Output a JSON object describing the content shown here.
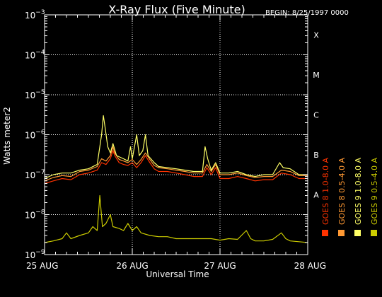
{
  "chart_data": {
    "type": "line",
    "title": "X-Ray Flux (Five Minute)",
    "begin_label": "BEGIN: 8/25/1997 0000",
    "xlabel": "Universal Time",
    "ylabel": "Watts meter2",
    "log_scale_y": true,
    "ylim": [
      1e-09,
      0.001
    ],
    "xlim_days": [
      0,
      3
    ],
    "grid": true,
    "legend_position": "right-vertical",
    "x_ticks": [
      {
        "day": 0,
        "label": "25 AUG"
      },
      {
        "day": 1,
        "label": "26 AUG"
      },
      {
        "day": 2,
        "label": "27 AUG"
      },
      {
        "day": 3,
        "label": "28 AUG"
      }
    ],
    "y_ticks": [
      {
        "value": 1e-09,
        "mantissa": "10",
        "exponent": "−9"
      },
      {
        "value": 1e-08,
        "mantissa": "10",
        "exponent": "−8"
      },
      {
        "value": 1e-07,
        "mantissa": "10",
        "exponent": "−7"
      },
      {
        "value": 1e-06,
        "mantissa": "10",
        "exponent": "−6"
      },
      {
        "value": 1e-05,
        "mantissa": "10",
        "exponent": "−5"
      },
      {
        "value": 0.0001,
        "mantissa": "10",
        "exponent": "−4"
      },
      {
        "value": 0.001,
        "mantissa": "10",
        "exponent": "−3"
      }
    ],
    "flare_classes": [
      {
        "label": "X",
        "value": 0.0001
      },
      {
        "label": "M",
        "value": 1e-05
      },
      {
        "label": "C",
        "value": 1e-06
      },
      {
        "label": "B",
        "value": 1e-07
      },
      {
        "label": "A",
        "value": 1e-08
      }
    ],
    "legend": [
      {
        "name": "GOES 8 1.0-8.0 A",
        "color": "#ff3300"
      },
      {
        "name": "GOES 8 0.5-4.0 A",
        "color": "#ff9933"
      },
      {
        "name": "GOES 9 1.0-8.0 A",
        "color": "#ffff66"
      },
      {
        "name": "GOES 9 0.5-4.0 A",
        "color": "#cccc00"
      }
    ],
    "series": [
      {
        "color": "#ff3300",
        "points": [
          [
            0,
            6e-08
          ],
          [
            0.1,
            7e-08
          ],
          [
            0.2,
            8e-08
          ],
          [
            0.3,
            7.5e-08
          ],
          [
            0.4,
            1e-07
          ],
          [
            0.5,
            1.1e-07
          ],
          [
            0.6,
            1.3e-07
          ],
          [
            0.65,
            2e-07
          ],
          [
            0.7,
            1.8e-07
          ],
          [
            0.75,
            2.5e-07
          ],
          [
            0.78,
            4e-07
          ],
          [
            0.8,
            3e-07
          ],
          [
            0.85,
            2e-07
          ],
          [
            0.9,
            1.8e-07
          ],
          [
            0.95,
            1.7e-07
          ],
          [
            1.0,
            2e-07
          ],
          [
            1.05,
            1.5e-07
          ],
          [
            1.1,
            2e-07
          ],
          [
            1.15,
            3e-07
          ],
          [
            1.2,
            2e-07
          ],
          [
            1.25,
            1.4e-07
          ],
          [
            1.3,
            1.2e-07
          ],
          [
            1.4,
            1.2e-07
          ],
          [
            1.5,
            1.1e-07
          ],
          [
            1.6,
            1e-07
          ],
          [
            1.7,
            9e-08
          ],
          [
            1.8,
            9e-08
          ],
          [
            1.85,
            1.5e-07
          ],
          [
            1.9,
            1e-07
          ],
          [
            1.95,
            1.5e-07
          ],
          [
            2.0,
            8e-08
          ],
          [
            2.1,
            8e-08
          ],
          [
            2.2,
            9e-08
          ],
          [
            2.3,
            8e-08
          ],
          [
            2.4,
            7e-08
          ],
          [
            2.5,
            7.5e-08
          ],
          [
            2.6,
            7.5e-08
          ],
          [
            2.7,
            1.1e-07
          ],
          [
            2.8,
            1e-07
          ],
          [
            2.9,
            8e-08
          ],
          [
            3.0,
            8e-08
          ]
        ]
      },
      {
        "color": "#ff9933",
        "points": [
          [
            0,
            7e-08
          ],
          [
            0.1,
            8.5e-08
          ],
          [
            0.2,
            9.5e-08
          ],
          [
            0.3,
            9e-08
          ],
          [
            0.4,
            1.2e-07
          ],
          [
            0.5,
            1.3e-07
          ],
          [
            0.6,
            1.6e-07
          ],
          [
            0.65,
            2.5e-07
          ],
          [
            0.7,
            2.2e-07
          ],
          [
            0.75,
            3e-07
          ],
          [
            0.78,
            5e-07
          ],
          [
            0.8,
            3.5e-07
          ],
          [
            0.85,
            2.4e-07
          ],
          [
            0.9,
            2.2e-07
          ],
          [
            0.95,
            2e-07
          ],
          [
            1.0,
            2.4e-07
          ],
          [
            1.05,
            1.8e-07
          ],
          [
            1.1,
            2.4e-07
          ],
          [
            1.15,
            3.5e-07
          ],
          [
            1.2,
            2.4e-07
          ],
          [
            1.25,
            1.7e-07
          ],
          [
            1.3,
            1.5e-07
          ],
          [
            1.4,
            1.4e-07
          ],
          [
            1.5,
            1.3e-07
          ],
          [
            1.6,
            1.2e-07
          ],
          [
            1.7,
            1.1e-07
          ],
          [
            1.8,
            1.1e-07
          ],
          [
            1.85,
            1.8e-07
          ],
          [
            1.9,
            1.2e-07
          ],
          [
            1.95,
            1.8e-07
          ],
          [
            2.0,
            1e-07
          ],
          [
            2.1,
            1e-07
          ],
          [
            2.2,
            1.1e-07
          ],
          [
            2.3,
            9.5e-08
          ],
          [
            2.4,
            8.5e-08
          ],
          [
            2.5,
            9e-08
          ],
          [
            2.6,
            9e-08
          ],
          [
            2.7,
            1.3e-07
          ],
          [
            2.8,
            1.2e-07
          ],
          [
            2.9,
            9.5e-08
          ],
          [
            3.0,
            9.5e-08
          ]
        ]
      },
      {
        "color": "#ffff66",
        "points": [
          [
            0,
            8e-08
          ],
          [
            0.1,
            1e-07
          ],
          [
            0.2,
            1.1e-07
          ],
          [
            0.3,
            1.1e-07
          ],
          [
            0.4,
            1.3e-07
          ],
          [
            0.5,
            1.4e-07
          ],
          [
            0.6,
            1.8e-07
          ],
          [
            0.65,
            1e-06
          ],
          [
            0.67,
            3e-06
          ],
          [
            0.69,
            1.5e-06
          ],
          [
            0.72,
            5e-07
          ],
          [
            0.75,
            3.5e-07
          ],
          [
            0.78,
            6e-07
          ],
          [
            0.82,
            3e-07
          ],
          [
            0.9,
            2.5e-07
          ],
          [
            0.95,
            2.2e-07
          ],
          [
            0.98,
            5e-07
          ],
          [
            1.0,
            2.5e-07
          ],
          [
            1.05,
            1e-06
          ],
          [
            1.08,
            3e-07
          ],
          [
            1.12,
            4e-07
          ],
          [
            1.15,
            1e-06
          ],
          [
            1.18,
            3e-07
          ],
          [
            1.25,
            2e-07
          ],
          [
            1.3,
            1.6e-07
          ],
          [
            1.4,
            1.5e-07
          ],
          [
            1.5,
            1.4e-07
          ],
          [
            1.6,
            1.3e-07
          ],
          [
            1.7,
            1.2e-07
          ],
          [
            1.8,
            1.2e-07
          ],
          [
            1.83,
            5e-07
          ],
          [
            1.86,
            2.5e-07
          ],
          [
            1.9,
            1.3e-07
          ],
          [
            1.95,
            2e-07
          ],
          [
            2.0,
            1.1e-07
          ],
          [
            2.1,
            1.1e-07
          ],
          [
            2.2,
            1.2e-07
          ],
          [
            2.3,
            1e-07
          ],
          [
            2.4,
            9e-08
          ],
          [
            2.5,
            1e-07
          ],
          [
            2.6,
            1e-07
          ],
          [
            2.68,
            2e-07
          ],
          [
            2.72,
            1.5e-07
          ],
          [
            2.8,
            1.4e-07
          ],
          [
            2.9,
            1e-07
          ],
          [
            3.0,
            1e-07
          ]
        ]
      },
      {
        "color": "#cccc00",
        "points": [
          [
            0,
            2e-09
          ],
          [
            0.1,
            2.2e-09
          ],
          [
            0.2,
            2.5e-09
          ],
          [
            0.25,
            3.5e-09
          ],
          [
            0.3,
            2.5e-09
          ],
          [
            0.4,
            3e-09
          ],
          [
            0.5,
            3.5e-09
          ],
          [
            0.55,
            5e-09
          ],
          [
            0.6,
            4e-09
          ],
          [
            0.63,
            3e-08
          ],
          [
            0.66,
            5e-09
          ],
          [
            0.7,
            6e-09
          ],
          [
            0.75,
            1e-08
          ],
          [
            0.78,
            5e-09
          ],
          [
            0.85,
            4.5e-09
          ],
          [
            0.9,
            4e-09
          ],
          [
            0.95,
            6e-09
          ],
          [
            1.0,
            4e-09
          ],
          [
            1.05,
            5e-09
          ],
          [
            1.1,
            3.5e-09
          ],
          [
            1.2,
            3e-09
          ],
          [
            1.3,
            2.8e-09
          ],
          [
            1.4,
            2.8e-09
          ],
          [
            1.5,
            2.5e-09
          ],
          [
            1.6,
            2.5e-09
          ],
          [
            1.7,
            2.5e-09
          ],
          [
            1.8,
            2.5e-09
          ],
          [
            1.9,
            2.5e-09
          ],
          [
            2.0,
            2.3e-09
          ],
          [
            2.1,
            2.5e-09
          ],
          [
            2.2,
            2.4e-09
          ],
          [
            2.3,
            4e-09
          ],
          [
            2.35,
            2.5e-09
          ],
          [
            2.4,
            2.2e-09
          ],
          [
            2.5,
            2.2e-09
          ],
          [
            2.6,
            2.4e-09
          ],
          [
            2.7,
            3.5e-09
          ],
          [
            2.75,
            2.5e-09
          ],
          [
            2.8,
            2.2e-09
          ],
          [
            2.9,
            2.1e-09
          ],
          [
            3.0,
            2e-09
          ]
        ]
      }
    ]
  }
}
